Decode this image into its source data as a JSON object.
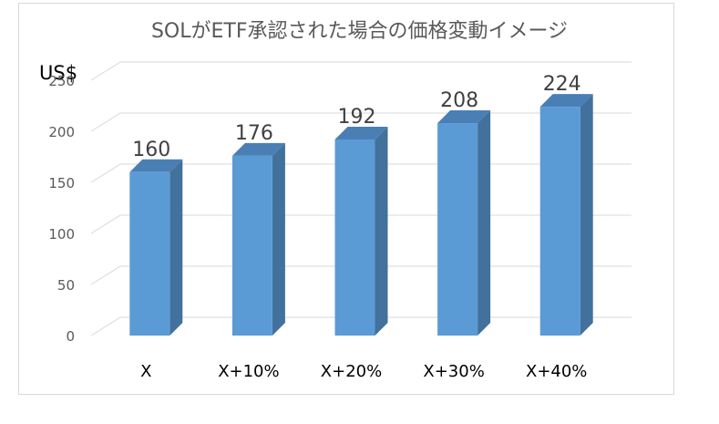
{
  "chart_data": {
    "type": "bar",
    "title": "SOLがETF承認された場合の価格変動イメージ",
    "ylabel": "US$",
    "xlabel": "",
    "categories": [
      "X",
      "X+10%",
      "X+20%",
      "X+30%",
      "X+40%"
    ],
    "values": [
      160,
      176,
      192,
      208,
      224
    ],
    "ylim": [
      0,
      250
    ],
    "yticks": [
      0,
      50,
      100,
      150,
      200,
      250
    ],
    "grid": true,
    "legend": "none",
    "bar_color": "#5b9bd5",
    "bar_side_color": "#41719c",
    "bar_top_color": "#4a7fb5"
  }
}
